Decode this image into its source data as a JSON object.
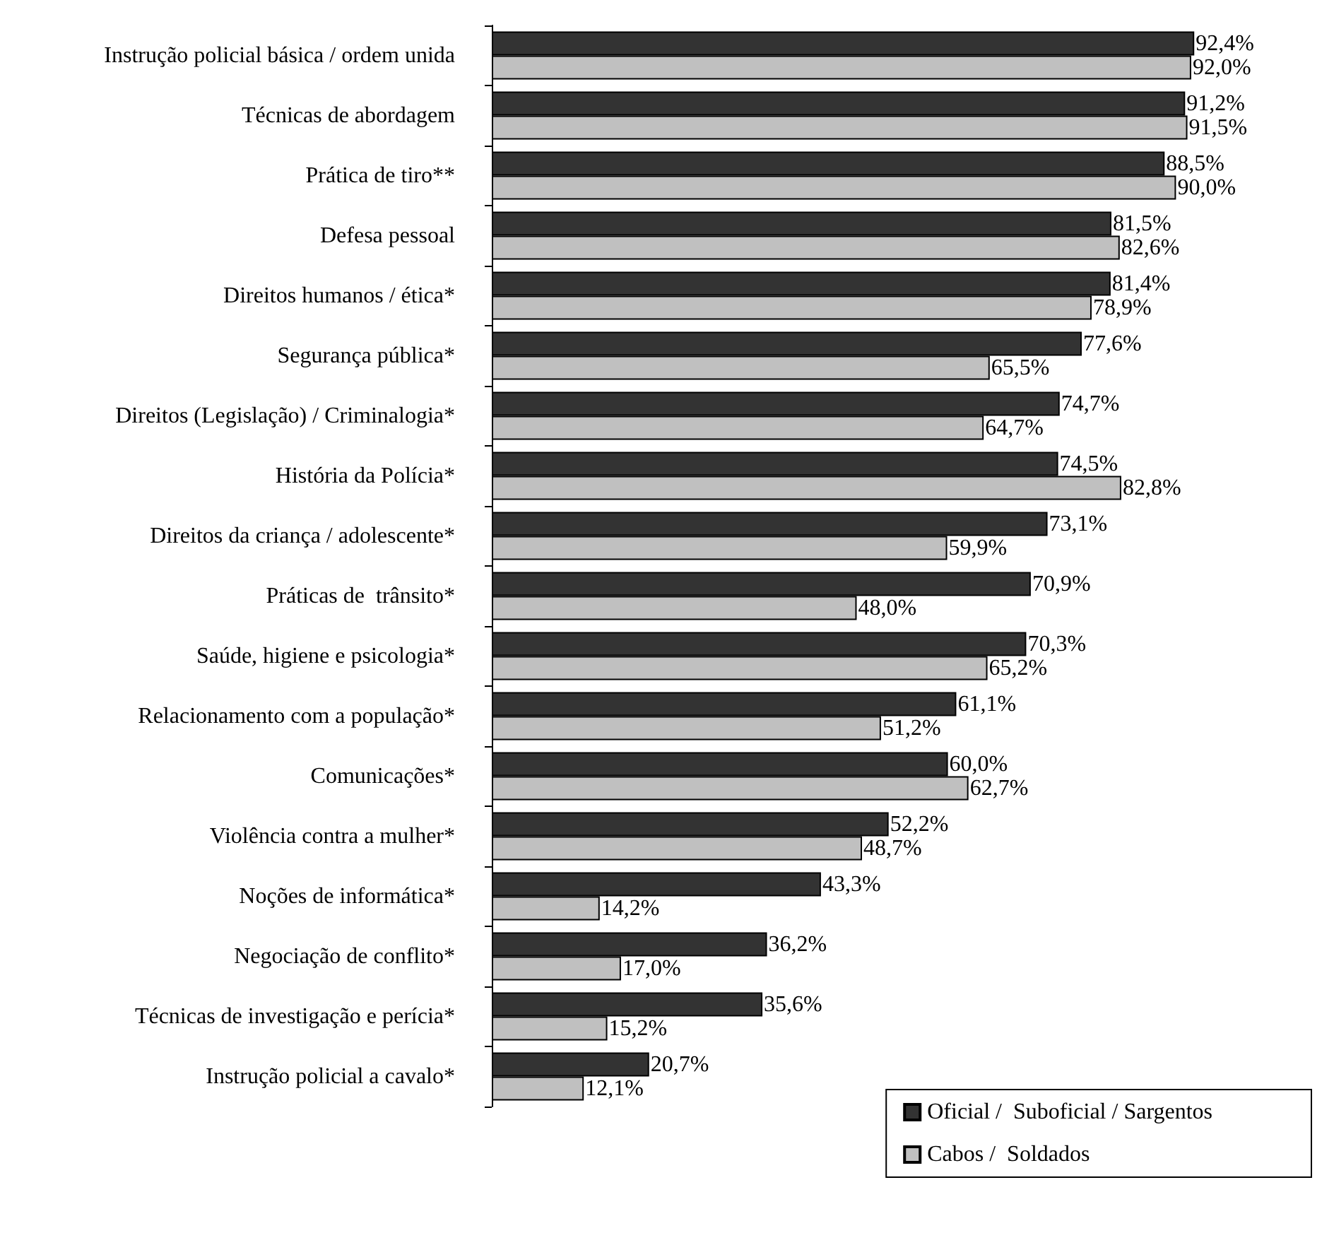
{
  "chart_data": {
    "type": "bar",
    "orientation": "horizontal",
    "categories": [
      "Instrução policial básica / ordem unida",
      "Técnicas de abordagem",
      "Prática de tiro**",
      "Defesa pessoal",
      "Direitos humanos / ética*",
      "Segurança pública*",
      "Direitos (Legislação) / Criminalogia*",
      "História da Polícia*",
      "Direitos da criança / adolescente*",
      "Práticas de  trânsito*",
      "Saúde, higiene e psicologia*",
      "Relacionamento com a população*",
      "Comunicações*",
      "Violência contra a mulher*",
      "Noções de informática*",
      "Negociação de conflito*",
      "Técnicas de investigação e perícia*",
      "Instrução policial a cavalo*"
    ],
    "series": [
      {
        "name": "Oficial /  Suboficial / Sargentos",
        "color": "#333333",
        "values": [
          92.4,
          91.2,
          88.5,
          81.5,
          81.4,
          77.6,
          74.7,
          74.5,
          73.1,
          70.9,
          70.3,
          61.1,
          60.0,
          52.2,
          43.3,
          36.2,
          35.6,
          20.7
        ],
        "value_labels": [
          "92,4%",
          "91,2%",
          "88,5%",
          "81,5%",
          "81,4%",
          "77,6%",
          "74,7%",
          "74,5%",
          "73,1%",
          "70,9%",
          "70,3%",
          "61,1%",
          "60,0%",
          "52,2%",
          "43,3%",
          "36,2%",
          "35,6%",
          "20,7%"
        ]
      },
      {
        "name": "Cabos /  Soldados",
        "color": "#c0c0c0",
        "values": [
          92.0,
          91.5,
          90.0,
          82.6,
          78.9,
          65.5,
          64.7,
          82.8,
          59.9,
          48.0,
          65.2,
          51.2,
          62.7,
          48.7,
          14.2,
          17.0,
          15.2,
          12.1
        ],
        "value_labels": [
          "92,0%",
          "91,5%",
          "90,0%",
          "82,6%",
          "78,9%",
          "65,5%",
          "64,7%",
          "82,8%",
          "59,9%",
          "48,0%",
          "65,2%",
          "51,2%",
          "62,7%",
          "48,7%",
          "14,2%",
          "17,0%",
          "15,2%",
          "12,1%"
        ]
      }
    ],
    "tick_labels": "y",
    "legend": "bottom right"
  }
}
